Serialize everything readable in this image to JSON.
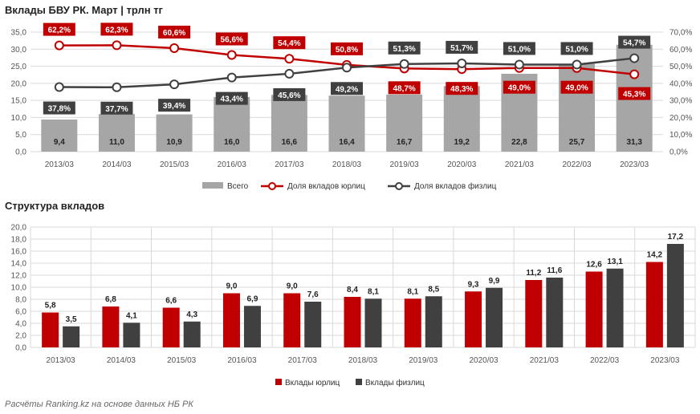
{
  "title1": "Вклады БВУ РК. Март | трлн тг",
  "title2": "Структура вкладов",
  "source": "Расчёты Ranking.kz на основе данных НБ РК",
  "colors": {
    "total": "#a6a6a6",
    "corp": "#c00000",
    "phys": "#404040",
    "grid": "#d9d9d9"
  },
  "chart_data": [
    {
      "type": "bar",
      "title": "Вклады БВУ РК. Март | трлн тг",
      "categories": [
        "2013/03",
        "2014/03",
        "2015/03",
        "2016/03",
        "2017/03",
        "2018/03",
        "2019/03",
        "2020/03",
        "2021/03",
        "2022/03",
        "2023/03"
      ],
      "ylim": [
        0,
        35
      ],
      "yticks": [
        "0,0",
        "5,0",
        "10,0",
        "15,0",
        "20,0",
        "25,0",
        "30,0",
        "35,0"
      ],
      "y2lim": [
        0,
        70
      ],
      "y2ticks": [
        "0,0%",
        "10,0%",
        "20,0%",
        "30,0%",
        "40,0%",
        "50,0%",
        "60,0%",
        "70,0%"
      ],
      "legend": "bottom",
      "series": [
        {
          "name": "Всего",
          "type": "bar",
          "values": [
            9.4,
            11.0,
            10.9,
            16.0,
            16.6,
            16.4,
            16.7,
            19.2,
            22.8,
            25.7,
            31.3
          ],
          "labels": [
            "9,4",
            "11,0",
            "10,9",
            "16,0",
            "16,6",
            "16,4",
            "16,7",
            "19,2",
            "22,8",
            "25,7",
            "31,3"
          ]
        },
        {
          "name": "Доля вкладов юрлиц",
          "type": "line",
          "axis": "right",
          "values": [
            62.2,
            62.3,
            60.6,
            56.6,
            54.4,
            50.8,
            48.7,
            48.3,
            49.0,
            49.0,
            45.3
          ],
          "labels": [
            "62,2%",
            "62,3%",
            "60,6%",
            "56,6%",
            "54,4%",
            "50,8%",
            "48,7%",
            "48,3%",
            "49,0%",
            "49,0%",
            "45,3%"
          ]
        },
        {
          "name": "Доля вкладов физлиц",
          "type": "line",
          "axis": "right",
          "values": [
            37.8,
            37.7,
            39.4,
            43.4,
            45.6,
            49.2,
            51.3,
            51.7,
            51.0,
            51.0,
            54.7
          ],
          "labels": [
            "37,8%",
            "37,7%",
            "39,4%",
            "43,4%",
            "45,6%",
            "49,2%",
            "51,3%",
            "51,7%",
            "51,0%",
            "51,0%",
            "54,7%"
          ]
        }
      ]
    },
    {
      "type": "bar",
      "title": "Структура вкладов",
      "categories": [
        "2013/03",
        "2014/03",
        "2015/03",
        "2016/03",
        "2017/03",
        "2018/03",
        "2019/03",
        "2020/03",
        "2021/03",
        "2022/03",
        "2023/03"
      ],
      "ylim": [
        0,
        20
      ],
      "yticks": [
        "0,0",
        "2,0",
        "4,0",
        "6,0",
        "8,0",
        "10,0",
        "12,0",
        "14,0",
        "16,0",
        "18,0",
        "20,0"
      ],
      "legend": "bottom",
      "series": [
        {
          "name": "Вклады юрлиц",
          "values": [
            5.8,
            6.8,
            6.6,
            9.0,
            9.0,
            8.4,
            8.1,
            9.3,
            11.2,
            12.6,
            14.2
          ],
          "labels": [
            "5,8",
            "6,8",
            "6,6",
            "9,0",
            "9,0",
            "8,4",
            "8,1",
            "9,3",
            "11,2",
            "12,6",
            "14,2"
          ]
        },
        {
          "name": "Вклады физлиц",
          "values": [
            3.5,
            4.1,
            4.3,
            6.9,
            7.6,
            8.1,
            8.5,
            9.9,
            11.6,
            13.1,
            17.2
          ],
          "labels": [
            "3,5",
            "4,1",
            "4,3",
            "6,9",
            "7,6",
            "8,1",
            "8,5",
            "9,9",
            "11,6",
            "13,1",
            "17,2"
          ]
        }
      ]
    }
  ]
}
